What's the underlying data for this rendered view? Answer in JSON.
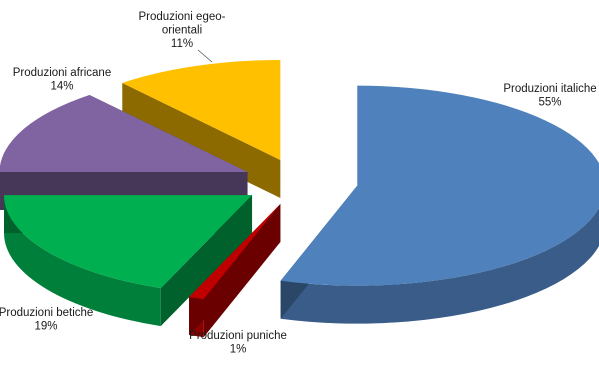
{
  "chart_data": {
    "type": "pie",
    "style": "3d-exploded",
    "title": "",
    "legend": "none",
    "slices": [
      {
        "label": "Produzioni italiche",
        "label_lines": [
          "Produzioni italiche"
        ],
        "value": 55,
        "display": "55%",
        "color": "#4f81bd"
      },
      {
        "label": "Produzioni puniche",
        "label_lines": [
          "Produzioni puniche"
        ],
        "value": 1,
        "display": "1%",
        "color": "#c00000"
      },
      {
        "label": "Produzioni betiche",
        "label_lines": [
          "Produzioni betiche"
        ],
        "value": 19,
        "display": "19%",
        "color": "#00b050"
      },
      {
        "label": "Produzioni africane",
        "label_lines": [
          "Produzioni africane"
        ],
        "value": 14,
        "display": "14%",
        "color": "#8064a2"
      },
      {
        "label": "Produzioni egeo-orientali",
        "label_lines": [
          "Produzioni egeo-",
          "orientali"
        ],
        "value": 11,
        "display": "11%",
        "color": "#ffc000"
      }
    ]
  }
}
